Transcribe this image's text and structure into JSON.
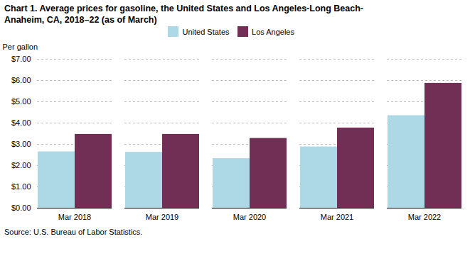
{
  "chart_data": {
    "type": "bar",
    "title": "Chart 1. Average prices for gasoline, the United States and Los Angeles-Long Beach-\nAnaheim, CA, 2018–22 (as of March)",
    "ylabel": "Per gallon",
    "source": "Source: U.S. Bureau of Labor Statistics.",
    "categories": [
      "Mar 2018",
      "Mar 2019",
      "Mar 2020",
      "Mar 2021",
      "Mar 2022"
    ],
    "series": [
      {
        "name": "United States",
        "color": "#add8e6",
        "values": [
          2.65,
          2.63,
          2.33,
          2.88,
          4.35
        ]
      },
      {
        "name": "Los Angeles",
        "color": "#722F56",
        "values": [
          3.47,
          3.47,
          3.28,
          3.77,
          5.87
        ]
      }
    ],
    "ylim": [
      0,
      7.0
    ],
    "yticks": [
      {
        "value": 0.0,
        "label": "$0.00"
      },
      {
        "value": 1.0,
        "label": "$1.00"
      },
      {
        "value": 2.0,
        "label": "$2.00"
      },
      {
        "value": 3.0,
        "label": "$3.00"
      },
      {
        "value": 4.0,
        "label": "$4.00"
      },
      {
        "value": 5.0,
        "label": "$5.00"
      },
      {
        "value": 6.0,
        "label": "$6.00"
      },
      {
        "value": 7.0,
        "label": "$7.00"
      }
    ],
    "grid": true,
    "legend": "top"
  }
}
